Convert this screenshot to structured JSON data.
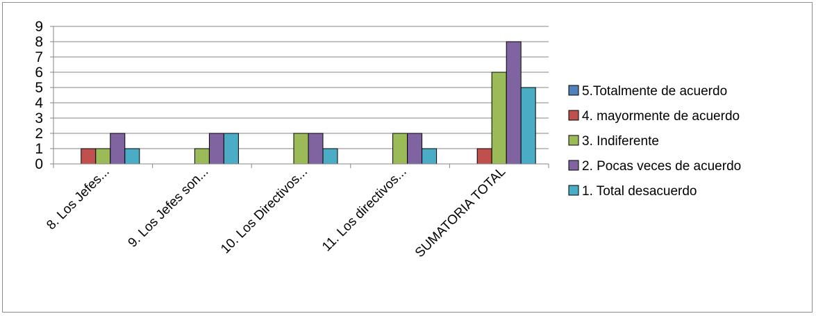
{
  "chart_data": {
    "type": "bar",
    "categories": [
      "8. Los  Jefes...",
      "9. Los Jefes son...",
      "10. Los Directivos...",
      "11. Los directivos...",
      "SUMATORIA TOTAL"
    ],
    "series": [
      {
        "name": "5.Totalmente de acuerdo",
        "color": "#4f81bd",
        "values": [
          0,
          0,
          0,
          0,
          0
        ]
      },
      {
        "name": "4. mayormente de acuerdo",
        "color": "#c0504d",
        "values": [
          1,
          0,
          0,
          0,
          1
        ]
      },
      {
        "name": "3. Indiferente",
        "color": "#9bbb59",
        "values": [
          1,
          1,
          2,
          2,
          6
        ]
      },
      {
        "name": "2. Pocas veces de acuerdo",
        "color": "#8064a2",
        "values": [
          2,
          2,
          2,
          2,
          8
        ]
      },
      {
        "name": "1. Total desacuerdo",
        "color": "#4bacc6",
        "values": [
          1,
          2,
          1,
          1,
          5
        ]
      }
    ],
    "ylim": [
      0,
      9
    ],
    "yticks": [
      0,
      1,
      2,
      3,
      4,
      5,
      6,
      7,
      8,
      9
    ],
    "grid": true,
    "legend_position": "right",
    "title": "",
    "xlabel": "",
    "ylabel": ""
  }
}
